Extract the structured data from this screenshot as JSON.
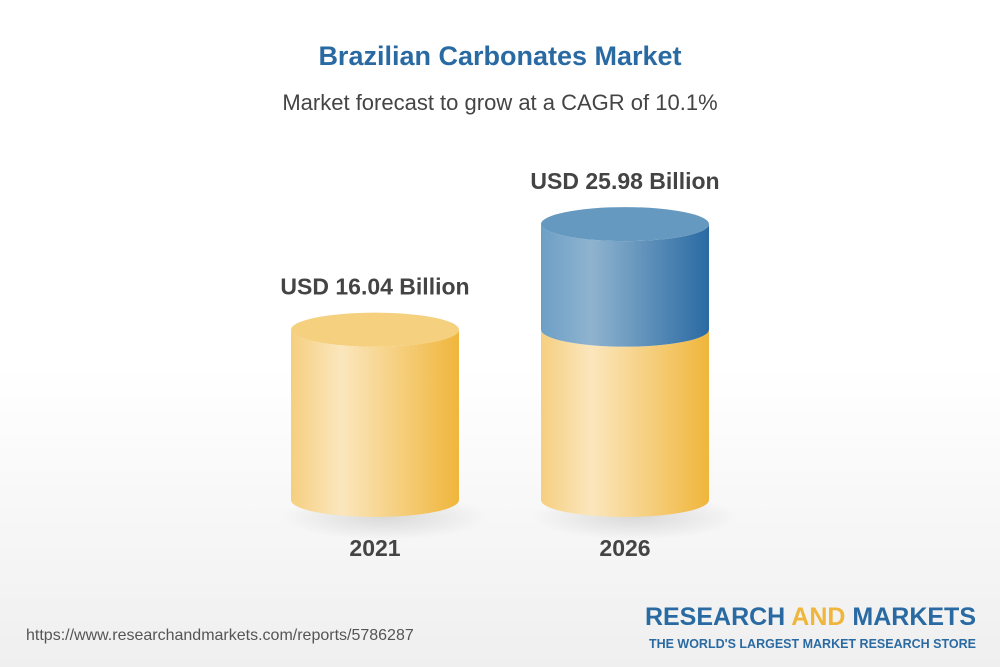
{
  "chart_data": {
    "type": "bar",
    "style": "3d-cylinder",
    "title": "Brazilian Carbonates Market",
    "subtitle": "Market forecast to grow at a CAGR of 10.1%",
    "categories": [
      "2021",
      "2026"
    ],
    "values": [
      16.04,
      25.98
    ],
    "data_labels": [
      "USD 16.04 Billion",
      "USD 25.98 Billion"
    ],
    "unit": "USD Billion",
    "colors": {
      "base": "#f0b63c",
      "growth": "#2a6aa3"
    },
    "grid": false
  },
  "footer": {
    "url": "https://www.researchandmarkets.com/reports/5786287",
    "logo_word1": "RESEARCH",
    "logo_word2": "AND",
    "logo_word3": "MARKETS",
    "tagline": "THE WORLD'S LARGEST MARKET RESEARCH STORE"
  }
}
